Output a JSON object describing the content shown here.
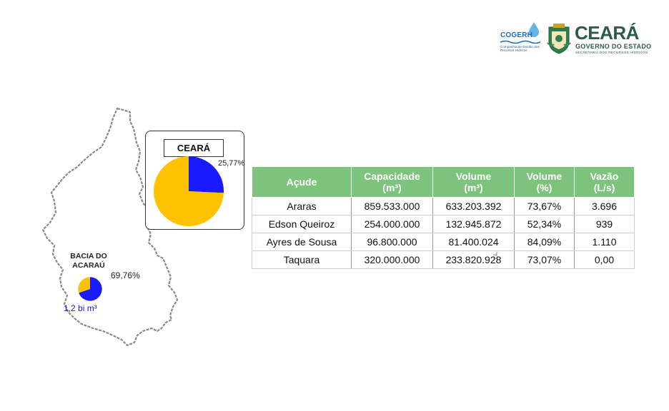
{
  "logos": {
    "cogerh_word": "COGERH",
    "cogerh_sub": "Companhia de Gestão dos Recursos Hídricos",
    "ceara_word": "CEARÁ",
    "ceara_gov": "GOVERNO DO ESTADO",
    "ceara_sec": "SECRETARIA DOS RECURSOS HÍDRICOS"
  },
  "colors": {
    "filled": "#1a1aff",
    "empty": "#ffc200",
    "header_bg": "#7dc37d"
  },
  "chart_data": [
    {
      "type": "pie",
      "title": "CEARÁ",
      "slices": [
        {
          "label": "25,77%",
          "value": 25.77,
          "color": "#1a1aff"
        },
        {
          "label": "",
          "value": 74.23,
          "color": "#ffc200"
        }
      ]
    },
    {
      "type": "pie",
      "title": "BACIA DO ACARAÚ",
      "annotation": "1,2 bi m³",
      "slices": [
        {
          "label": "69,76%",
          "value": 69.76,
          "color": "#1a1aff"
        },
        {
          "label": "",
          "value": 30.24,
          "color": "#ffc200"
        }
      ]
    },
    {
      "type": "table",
      "headers": [
        [
          "Açude"
        ],
        [
          "Capacidade",
          "(m³)"
        ],
        [
          "Volume",
          "(m³)"
        ],
        [
          "Volume",
          "(%)"
        ],
        [
          "Vazão",
          "(L/s)"
        ]
      ],
      "rows": [
        [
          "Araras",
          "859.533.000",
          "633.203.392",
          "73,67%",
          "3.696"
        ],
        [
          "Edson Queiroz",
          "254.000.000",
          "132.945.872",
          "52,34%",
          "939"
        ],
        [
          "Ayres de Sousa",
          "96.800.000",
          "81.400.024",
          "84,09%",
          "1.110"
        ],
        [
          "Taquara",
          "320.000.000",
          "233.820.928",
          "73,07%",
          "0,00"
        ]
      ]
    }
  ]
}
